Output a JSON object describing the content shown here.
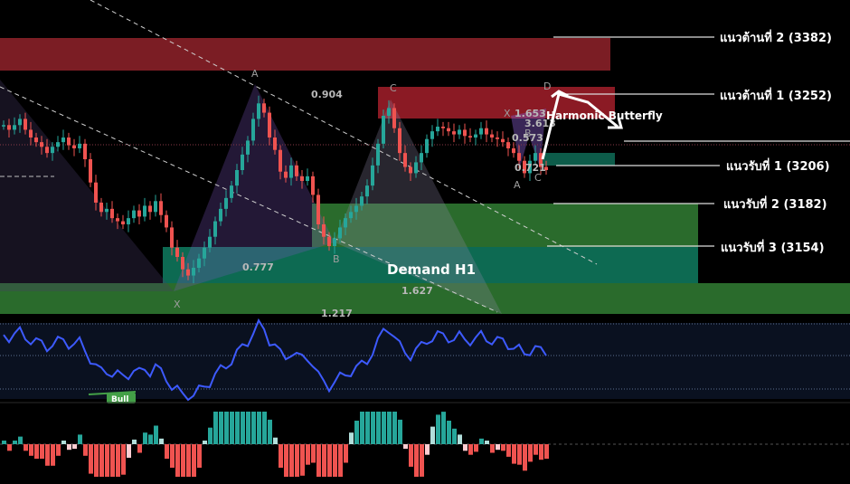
{
  "colors": {
    "resistance": "#7b1d24",
    "demand": "#0d6a52",
    "support_green": "#2a6b2c",
    "bull": "#26a69a",
    "bear": "#ef5350",
    "rsi": "#3d5afe",
    "pattern": "#7e57c2",
    "hist_up_dark": "#26a69a",
    "hist_up_light": "#b2dfdb",
    "hist_dn_dark": "#ef5350",
    "hist_dn_light": "#ffcdd2"
  },
  "chart_data": {
    "type": "candlestick",
    "levels": [
      {
        "label": "แนวต้านที่ 2 (3382)",
        "value": 3382,
        "kind": "resistance"
      },
      {
        "label": "แนวต้านที่ 1 (3252)",
        "value": 3252,
        "kind": "resistance"
      },
      {
        "label": "แนวรับที่ 1 (3206)",
        "value": 3206,
        "kind": "support"
      },
      {
        "label": "แนวรับที่ 2 (3182)",
        "value": 3182,
        "kind": "support"
      },
      {
        "label": "แนวรับที่ 3 (3154)",
        "value": 3154,
        "kind": "support"
      }
    ],
    "zones": {
      "demand_label": "Demand H1"
    },
    "harmonic": {
      "name": "Harmonic Butterfly",
      "points": [
        {
          "label": "X"
        },
        {
          "label": "A"
        },
        {
          "label": "B"
        },
        {
          "label": "C"
        },
        {
          "label": "D"
        }
      ],
      "ratios": [
        "0.904",
        "0.777",
        "1.627",
        "1.217"
      ],
      "small_points": [
        "X",
        "A",
        "C",
        "B",
        "D"
      ],
      "small_ratios": [
        "1.653",
        "3.613",
        "0.573",
        "0.721"
      ]
    },
    "rsi_badge": "Bull",
    "price_series": [
      3232,
      3229,
      3232,
      3236,
      3229,
      3224,
      3221,
      3218,
      3214,
      3218,
      3221,
      3224,
      3219,
      3217,
      3220,
      3210,
      3195,
      3182,
      3176,
      3178,
      3172,
      3170,
      3168,
      3172,
      3177,
      3173,
      3180,
      3176,
      3183,
      3174,
      3166,
      3153,
      3147,
      3139,
      3135,
      3140,
      3146,
      3153,
      3160,
      3170,
      3178,
      3185,
      3193,
      3203,
      3213,
      3222,
      3236,
      3246,
      3240,
      3224,
      3216,
      3202,
      3198,
      3206,
      3199,
      3196,
      3199,
      3187,
      3168,
      3160,
      3154,
      3159,
      3166,
      3172,
      3176,
      3180,
      3186,
      3193,
      3206,
      3220,
      3238,
      3243,
      3230,
      3214,
      3205,
      3201,
      3208,
      3214,
      3223,
      3228,
      3231,
      3230,
      3228,
      3226,
      3229,
      3225,
      3224,
      3226,
      3230,
      3226,
      3224,
      3223,
      3221,
      3217,
      3214,
      3209,
      3201,
      3209,
      3214,
      3205,
      3203
    ]
  }
}
